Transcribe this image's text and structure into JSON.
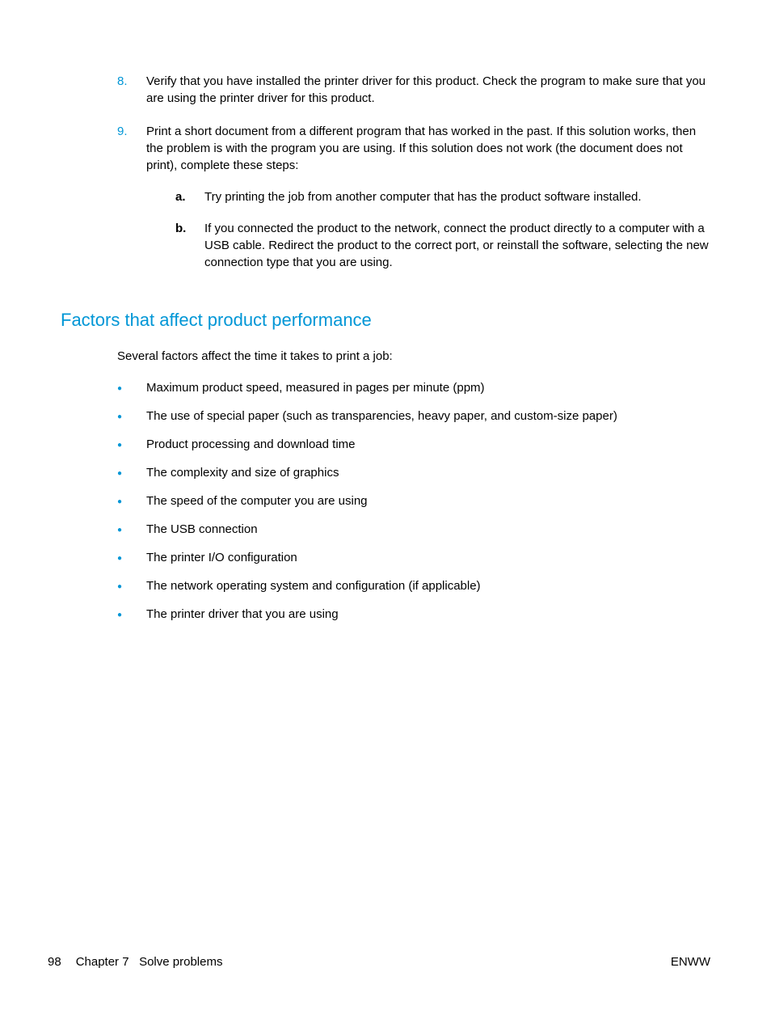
{
  "colors": {
    "accent": "#0096d6",
    "text": "#000000",
    "background": "#ffffff"
  },
  "typography": {
    "body_fontsize": 15,
    "heading_fontsize": 22,
    "font_family": "Arial"
  },
  "ordered_items": [
    {
      "number": "8.",
      "text": "Verify that you have installed the printer driver for this product. Check the program to make sure that you are using the printer driver for this product."
    },
    {
      "number": "9.",
      "text": "Print a short document from a different program that has worked in the past. If this solution works, then the problem is with the program you are using. If this solution does not work (the document does not print), complete these steps:",
      "sub_items": [
        {
          "letter": "a.",
          "text": "Try printing the job from another computer that has the product software installed."
        },
        {
          "letter": "b.",
          "text": "If you connected the product to the network, connect the product directly to a computer with a USB cable. Redirect the product to the correct port, or reinstall the software, selecting the new connection type that you are using."
        }
      ]
    }
  ],
  "section": {
    "heading": "Factors that affect product performance",
    "intro": "Several factors affect the time it takes to print a job:",
    "bullets": [
      "Maximum product speed, measured in pages per minute (ppm)",
      "The use of special paper (such as transparencies, heavy paper, and custom-size paper)",
      "Product processing and download time",
      "The complexity and size of graphics",
      "The speed of the computer you are using",
      "The USB connection",
      "The printer I/O configuration",
      "The network operating system and configuration (if applicable)",
      "The printer driver that you are using"
    ]
  },
  "footer": {
    "page_number": "98",
    "chapter": "Chapter 7",
    "chapter_title": "Solve problems",
    "region": "ENWW"
  }
}
